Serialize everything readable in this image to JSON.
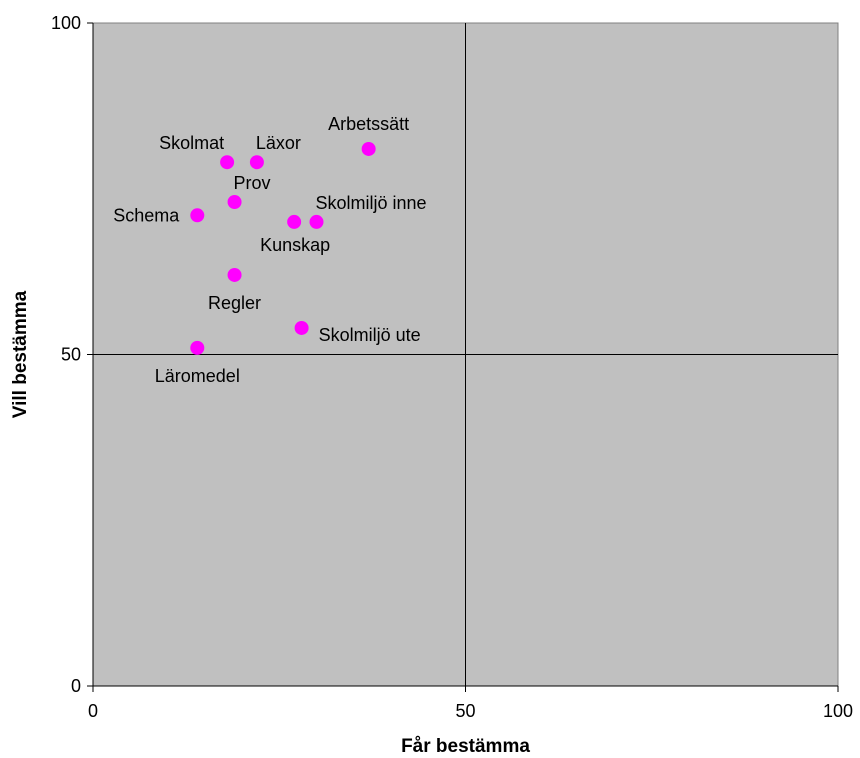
{
  "chart_data": {
    "type": "scatter",
    "xlabel": "Får bestämma",
    "ylabel": "Vill bestämma",
    "xlim": [
      0,
      100
    ],
    "ylim": [
      0,
      100
    ],
    "xticks": [
      0,
      50,
      100
    ],
    "yticks": [
      0,
      50,
      100
    ],
    "grid": "major lines at 50 on both axes",
    "colors": {
      "plot_background": "#c0c0c0",
      "point": "#ff00ff"
    },
    "points": [
      {
        "label": "Arbetssätt",
        "x": 37,
        "y": 81,
        "label_pos": "top"
      },
      {
        "label": "Skolmat",
        "x": 18,
        "y": 79,
        "label_pos": "top-left"
      },
      {
        "label": "Läxor",
        "x": 22,
        "y": 79,
        "label_pos": "top-right"
      },
      {
        "label": "Prov",
        "x": 19,
        "y": 73,
        "label_pos": "top-right"
      },
      {
        "label": "Schema",
        "x": 14,
        "y": 71,
        "label_pos": "left"
      },
      {
        "label": "Kunskap",
        "x": 27,
        "y": 70,
        "label_pos": "bottom-left"
      },
      {
        "label": "Skolmiljö inne",
        "x": 30,
        "y": 70,
        "label_pos": "top-right"
      },
      {
        "label": "Regler",
        "x": 19,
        "y": 62,
        "label_pos": "bottom"
      },
      {
        "label": "Skolmiljö ute",
        "x": 28,
        "y": 54,
        "label_pos": "right"
      },
      {
        "label": "Läromedel",
        "x": 14,
        "y": 51,
        "label_pos": "bottom"
      }
    ]
  }
}
